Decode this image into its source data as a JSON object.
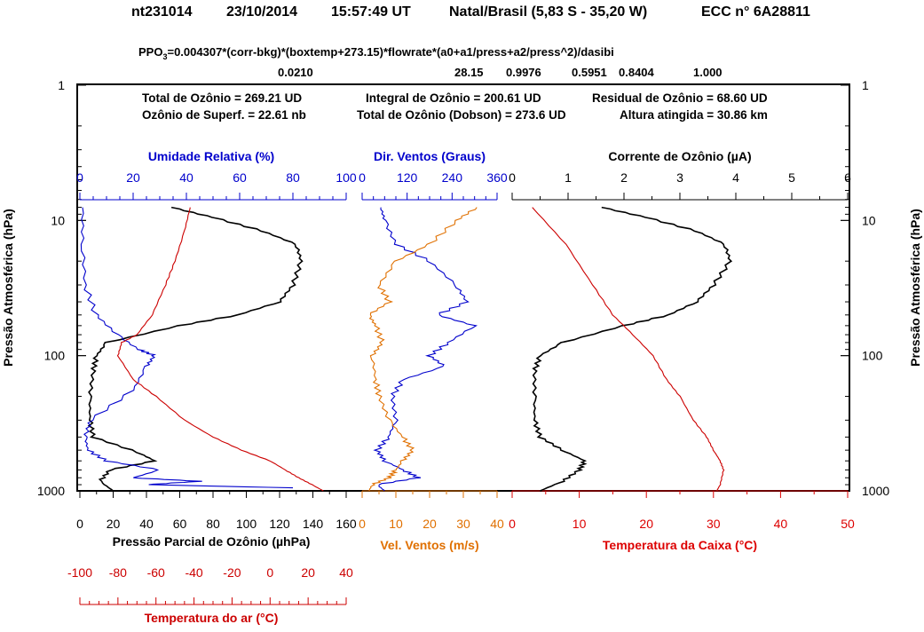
{
  "header": {
    "station_id": "nt231014",
    "date": "23/10/2014",
    "time": "15:57:49 UT",
    "location": "Natal/Brasil (5,83 S - 35,20 W)",
    "sonde": "ECC  n° 6A28811"
  },
  "formula": {
    "prefix": "PPO",
    "sub": "3",
    "rest": "=0.004307*(corr-bkg)*(boxtemp+273.15)*flowrate*(a0+a1/press+a2/press^2)/dasibi",
    "values": [
      "0.0210",
      "28.15",
      "0.9976",
      "0.5951",
      "0.8404",
      "1.000"
    ]
  },
  "stats": {
    "total_ozone": "Total de Ozônio = 269.21  UD",
    "integral_ozone": "Integral de Ozônio = 200.61  UD",
    "residual_ozone": "Residual  de Ozônio = 68.60 UD",
    "surface_ozone": "Ozônio de Superf. = 22.61 nb",
    "dobson_total": "Total de Ozônio (Dobson) = 273.6 UD",
    "max_altitude": "Altura atingida = 30.86 km"
  },
  "colors": {
    "black": "#000000",
    "blue": "#0000cc",
    "red": "#cc0000",
    "orange": "#e07000",
    "red_text": "#dd0000"
  },
  "chart_data": [
    {
      "type": "line",
      "panel": "ozone-humidity-airtemp",
      "y_axis": {
        "label": "Pressão Atmosférica (hPa)",
        "scale": "log",
        "reversed": true,
        "range": [
          1,
          1000
        ],
        "ticks": [
          "1",
          "10",
          "100",
          "1000"
        ]
      },
      "x_axes": [
        {
          "label": "Pressão Parcial de Ozônio (µhPa)",
          "position": "bottom",
          "range": [
            0,
            160
          ],
          "ticks": [
            "0",
            "20",
            "40",
            "60",
            "80",
            "100",
            "120",
            "140",
            "160"
          ],
          "color": "#000000"
        },
        {
          "label": "Umidade Relativa (%)",
          "position": "top",
          "range": [
            0,
            100
          ],
          "ticks": [
            "0",
            "20",
            "40",
            "60",
            "80",
            "100"
          ],
          "color": "#0000cc"
        },
        {
          "label": "Temperatura do ar (°C)",
          "position": "bottom-offset",
          "range": [
            -100,
            40
          ],
          "ticks": [
            "-100",
            "-80",
            "-60",
            "-40",
            "-20",
            "0",
            "20",
            "40"
          ],
          "color": "#cc0000"
        }
      ],
      "series": [
        {
          "color": "#000000",
          "axis": "ozone_partial_pressure",
          "points": [
            [
              20,
              1000
            ],
            [
              12,
              850
            ],
            [
              18,
              700
            ],
            [
              45,
              600
            ],
            [
              35,
              520
            ],
            [
              8,
              400
            ],
            [
              6,
              300
            ],
            [
              6,
              200
            ],
            [
              8,
              130
            ],
            [
              10,
              100
            ],
            [
              16,
              80
            ],
            [
              60,
              60
            ],
            [
              95,
              50
            ],
            [
              120,
              40
            ],
            [
              128,
              30
            ],
            [
              133,
              20
            ],
            [
              130,
              15
            ],
            [
              110,
              12
            ],
            [
              80,
              9.5
            ],
            [
              55,
              8
            ]
          ]
        },
        {
          "color": "#0000cc",
          "axis": "relative_humidity",
          "points": [
            [
              80,
              950
            ],
            [
              25,
              900
            ],
            [
              45,
              850
            ],
            [
              20,
              800
            ],
            [
              30,
              700
            ],
            [
              10,
              600
            ],
            [
              3,
              500
            ],
            [
              2,
              400
            ],
            [
              4,
              300
            ],
            [
              20,
              180
            ],
            [
              25,
              120
            ],
            [
              28,
              100
            ],
            [
              22,
              90
            ],
            [
              14,
              70
            ],
            [
              6,
              50
            ],
            [
              2,
              30
            ],
            [
              1,
              15
            ],
            [
              1,
              8
            ]
          ]
        },
        {
          "color": "#cc0000",
          "axis": "air_temperature",
          "points": [
            [
              28,
              1000
            ],
            [
              22,
              900
            ],
            [
              15,
              800
            ],
            [
              8,
              700
            ],
            [
              0,
              600
            ],
            [
              -15,
              500
            ],
            [
              -30,
              400
            ],
            [
              -45,
              300
            ],
            [
              -60,
              200
            ],
            [
              -72,
              150
            ],
            [
              -80,
              100
            ],
            [
              -78,
              80
            ],
            [
              -70,
              70
            ],
            [
              -62,
              50
            ],
            [
              -55,
              30
            ],
            [
              -50,
              20
            ],
            [
              -45,
              12
            ],
            [
              -42,
              8
            ]
          ]
        }
      ]
    },
    {
      "type": "line",
      "panel": "wind",
      "y_axis": {
        "scale": "log",
        "reversed": true,
        "range": [
          1,
          1000
        ]
      },
      "x_axes": [
        {
          "label": "Dir. Ventos (Graus)",
          "position": "top",
          "range": [
            0,
            360
          ],
          "ticks": [
            "0",
            "120",
            "240",
            "360"
          ],
          "color": "#0000cc"
        },
        {
          "label": "Vel. Ventos (m/s)",
          "position": "bottom",
          "range": [
            0,
            40
          ],
          "ticks": [
            "0",
            "10",
            "20",
            "30",
            "40"
          ],
          "color": "#e07000"
        }
      ],
      "series": [
        {
          "color": "#0000cc",
          "axis": "wind_direction",
          "points": [
            [
              60,
              1000
            ],
            [
              40,
              900
            ],
            [
              150,
              800
            ],
            [
              110,
              700
            ],
            [
              60,
              600
            ],
            [
              40,
              500
            ],
            [
              70,
              400
            ],
            [
              90,
              300
            ],
            [
              80,
              200
            ],
            [
              110,
              150
            ],
            [
              220,
              120
            ],
            [
              180,
              100
            ],
            [
              230,
              80
            ],
            [
              300,
              60
            ],
            [
              200,
              50
            ],
            [
              280,
              40
            ],
            [
              250,
              30
            ],
            [
              180,
              20
            ],
            [
              90,
              15
            ],
            [
              60,
              10
            ],
            [
              50,
              8
            ]
          ]
        },
        {
          "color": "#e07000",
          "axis": "wind_speed",
          "points": [
            [
              2,
              1000
            ],
            [
              3,
              900
            ],
            [
              8,
              800
            ],
            [
              10,
              700
            ],
            [
              12,
              600
            ],
            [
              15,
              500
            ],
            [
              12,
              400
            ],
            [
              8,
              300
            ],
            [
              5,
              200
            ],
            [
              4,
              150
            ],
            [
              3,
              100
            ],
            [
              6,
              80
            ],
            [
              4,
              60
            ],
            [
              2,
              50
            ],
            [
              8,
              40
            ],
            [
              5,
              30
            ],
            [
              10,
              20
            ],
            [
              20,
              15
            ],
            [
              28,
              10
            ],
            [
              34,
              8
            ]
          ]
        }
      ]
    },
    {
      "type": "line",
      "panel": "current-boxtemp",
      "y_axis": {
        "label": "Pressão Atmosférica (hPa)",
        "scale": "log",
        "reversed": true,
        "range": [
          1,
          1000
        ],
        "ticks": [
          "1",
          "10",
          "100",
          "1000"
        ]
      },
      "x_axes": [
        {
          "label": "Corrente de Ozônio (µA)",
          "position": "top",
          "range": [
            0,
            6
          ],
          "ticks": [
            "0",
            "1",
            "2",
            "3",
            "4",
            "5",
            "6"
          ],
          "color": "#000000"
        },
        {
          "label": "Temperatura da Caixa (°C)",
          "position": "bottom",
          "range": [
            0,
            50
          ],
          "ticks": [
            "0",
            "10",
            "20",
            "30",
            "40",
            "50"
          ],
          "color": "#dd0000"
        }
      ],
      "series": [
        {
          "color": "#000000",
          "axis": "ozone_current",
          "points": [
            [
              0.5,
              1000
            ],
            [
              0.9,
              850
            ],
            [
              1.2,
              700
            ],
            [
              1.3,
              600
            ],
            [
              0.9,
              500
            ],
            [
              0.5,
              400
            ],
            [
              0.4,
              300
            ],
            [
              0.4,
              200
            ],
            [
              0.4,
              130
            ],
            [
              0.5,
              100
            ],
            [
              0.9,
              80
            ],
            [
              2.0,
              60
            ],
            [
              2.8,
              50
            ],
            [
              3.3,
              40
            ],
            [
              3.6,
              30
            ],
            [
              3.9,
              20
            ],
            [
              3.8,
              15
            ],
            [
              3.3,
              12
            ],
            [
              2.4,
              9.5
            ],
            [
              1.6,
              8
            ]
          ]
        },
        {
          "color": "#cc0000",
          "axis": "box_temperature",
          "points": [
            [
              30.5,
              1000
            ],
            [
              31,
              900
            ],
            [
              31.5,
              700
            ],
            [
              31,
              600
            ],
            [
              30,
              500
            ],
            [
              29,
              400
            ],
            [
              27,
              300
            ],
            [
              25,
              200
            ],
            [
              23,
              150
            ],
            [
              21,
              100
            ],
            [
              18,
              70
            ],
            [
              15,
              50
            ],
            [
              12,
              30
            ],
            [
              8,
              15
            ],
            [
              3,
              8
            ]
          ]
        }
      ]
    }
  ]
}
